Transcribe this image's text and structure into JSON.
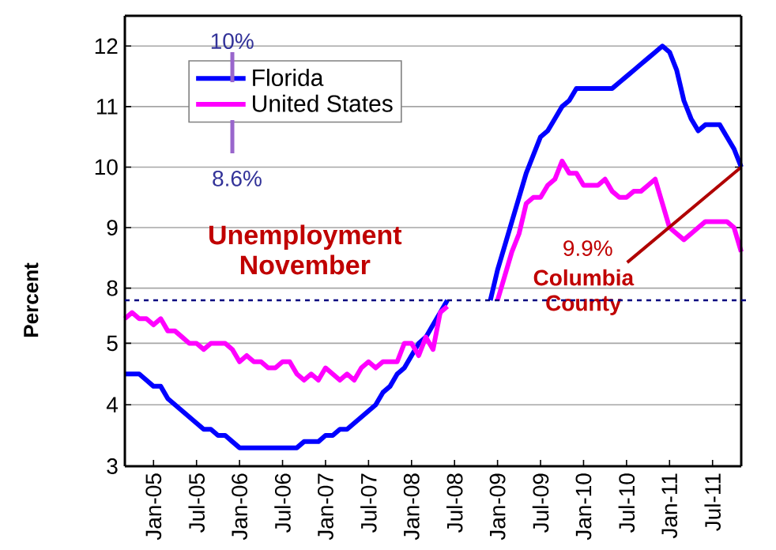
{
  "chart_data": [
    {
      "type": "line",
      "ylabel": "Percent",
      "tick_labels": "y",
      "grid": "y",
      "legend": "top left",
      "line_style": "solid",
      "marker": "none",
      "xlim": [
        "2004-09",
        "2011-11"
      ],
      "ylim": [
        7.8,
        12.5
      ],
      "yticks": [
        8,
        9,
        10,
        11,
        12
      ],
      "x": [
        "2008-12",
        "2009-01",
        "2009-02",
        "2009-03",
        "2009-04",
        "2009-05",
        "2009-06",
        "2009-07",
        "2009-08",
        "2009-09",
        "2009-10",
        "2009-11",
        "2009-12",
        "2010-01",
        "2010-02",
        "2010-03",
        "2010-04",
        "2010-05",
        "2010-06",
        "2010-07",
        "2010-08",
        "2010-09",
        "2010-10",
        "2010-11",
        "2010-12",
        "2011-01",
        "2011-02",
        "2011-03",
        "2011-04",
        "2011-05",
        "2011-06",
        "2011-07",
        "2011-08",
        "2011-09",
        "2011-10",
        "2011-11"
      ],
      "series": [
        {
          "name": "Florida",
          "color": "#0000ff",
          "values": [
            7.8,
            8.3,
            8.7,
            9.1,
            9.5,
            9.9,
            10.2,
            10.5,
            10.6,
            10.8,
            11.0,
            11.1,
            11.3,
            11.3,
            11.3,
            11.3,
            11.3,
            11.3,
            11.4,
            11.5,
            11.6,
            11.7,
            11.8,
            11.9,
            12.0,
            11.9,
            11.6,
            11.1,
            10.8,
            10.6,
            10.7,
            10.7,
            10.7,
            10.5,
            10.3,
            10.0
          ]
        },
        {
          "name": "United States",
          "color": "#ff00ff",
          "values": [
            null,
            7.8,
            8.2,
            8.6,
            8.9,
            9.4,
            9.5,
            9.5,
            9.7,
            9.8,
            10.1,
            9.9,
            9.9,
            9.7,
            9.7,
            9.7,
            9.8,
            9.6,
            9.5,
            9.5,
            9.6,
            9.6,
            9.7,
            9.8,
            9.4,
            9.0,
            8.9,
            8.8,
            8.9,
            9.0,
            9.1,
            9.1,
            9.1,
            9.1,
            9.0,
            8.6
          ]
        }
      ],
      "annotations": [
        "10%",
        "8.6%",
        "Unemployment November",
        {
          "text": "9.9%",
          "x": "2011-11",
          "y": 10.0
        },
        "Columbia County"
      ]
    },
    {
      "type": "line",
      "grid": "y",
      "line_style": "solid",
      "marker": "none",
      "xlim": [
        "2004-09",
        "2011-11"
      ],
      "ylim": [
        3,
        5.7
      ],
      "yticks": [
        3,
        4,
        5
      ],
      "xticks": [
        {
          "value": "2005-01",
          "label": "Jan-05"
        },
        {
          "value": "2005-07",
          "label": "Jul-05"
        },
        {
          "value": "2006-01",
          "label": "Jan-06"
        },
        {
          "value": "2006-07",
          "label": "Jul-06"
        },
        {
          "value": "2007-01",
          "label": "Jan-07"
        },
        {
          "value": "2007-07",
          "label": "Jul-07"
        },
        {
          "value": "2008-01",
          "label": "Jan-08"
        },
        {
          "value": "2008-07",
          "label": "Jul-08"
        },
        {
          "value": "2009-01",
          "label": "Jan-09"
        },
        {
          "value": "2009-07",
          "label": "Jul-09"
        },
        {
          "value": "2010-01",
          "label": "Jan-10"
        },
        {
          "value": "2010-07",
          "label": "Jul-10"
        },
        {
          "value": "2011-01",
          "label": "Jan-11"
        },
        {
          "value": "2011-07",
          "label": "Jul-11"
        }
      ],
      "x": [
        "2004-09",
        "2004-10",
        "2004-11",
        "2004-12",
        "2005-01",
        "2005-02",
        "2005-03",
        "2005-04",
        "2005-05",
        "2005-06",
        "2005-07",
        "2005-08",
        "2005-09",
        "2005-10",
        "2005-11",
        "2005-12",
        "2006-01",
        "2006-02",
        "2006-03",
        "2006-04",
        "2006-05",
        "2006-06",
        "2006-07",
        "2006-08",
        "2006-09",
        "2006-10",
        "2006-11",
        "2006-12",
        "2007-01",
        "2007-02",
        "2007-03",
        "2007-04",
        "2007-05",
        "2007-06",
        "2007-07",
        "2007-08",
        "2007-09",
        "2007-10",
        "2007-11",
        "2007-12",
        "2008-01",
        "2008-02",
        "2008-03",
        "2008-04",
        "2008-05",
        "2008-06"
      ],
      "series": [
        {
          "color": "#0000ff",
          "values": [
            4.5,
            4.5,
            4.5,
            4.4,
            4.3,
            4.3,
            4.1,
            4.0,
            3.9,
            3.8,
            3.7,
            3.6,
            3.6,
            3.5,
            3.5,
            3.4,
            3.3,
            3.3,
            3.3,
            3.3,
            3.3,
            3.3,
            3.3,
            3.3,
            3.3,
            3.4,
            3.4,
            3.4,
            3.5,
            3.5,
            3.6,
            3.6,
            3.7,
            3.8,
            3.9,
            4.0,
            4.2,
            4.3,
            4.5,
            4.6,
            4.8,
            5.0,
            5.1,
            5.3,
            5.5,
            5.7
          ]
        },
        {
          "color": "#ff00ff",
          "values": [
            5.4,
            5.5,
            5.4,
            5.4,
            5.3,
            5.4,
            5.2,
            5.2,
            5.1,
            5.0,
            5.0,
            4.9,
            5.0,
            5.0,
            5.0,
            4.9,
            4.7,
            4.8,
            4.7,
            4.7,
            4.6,
            4.6,
            4.7,
            4.7,
            4.5,
            4.4,
            4.5,
            4.4,
            4.6,
            4.5,
            4.4,
            4.5,
            4.4,
            4.6,
            4.7,
            4.6,
            4.7,
            4.7,
            4.7,
            5.0,
            5.0,
            4.8,
            5.1,
            4.9,
            5.5,
            5.6
          ]
        }
      ]
    }
  ]
}
